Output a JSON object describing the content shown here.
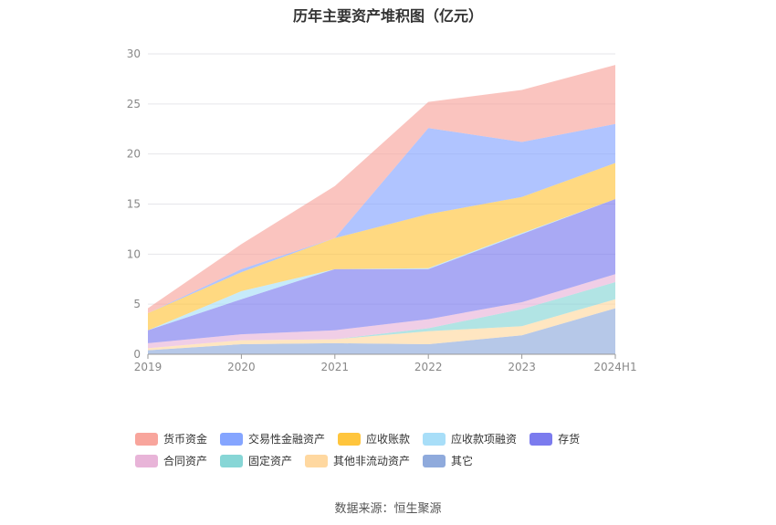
{
  "chart_data": {
    "type": "area",
    "title": "历年主要资产堆积图（亿元）",
    "categories": [
      "2019",
      "2020",
      "2021",
      "2022",
      "2023",
      "2024H1"
    ],
    "ylim": [
      0,
      30
    ],
    "yticks": [
      "0",
      "5",
      "10",
      "15",
      "20",
      "25",
      "30"
    ],
    "stacked": true,
    "grid": true,
    "legend_position": "bottom",
    "series": [
      {
        "name": "其它",
        "color": "#8FAADC",
        "values": [
          0.4,
          1.0,
          1.1,
          1.0,
          1.9,
          4.6
        ]
      },
      {
        "name": "其他非流动资产",
        "color": "#FFD8A0",
        "values": [
          0.2,
          0.4,
          0.4,
          1.3,
          0.9,
          0.9
        ]
      },
      {
        "name": "固定资产",
        "color": "#87D6D6",
        "values": [
          0.0,
          0.0,
          0.0,
          0.3,
          1.7,
          1.7
        ]
      },
      {
        "name": "合同资产",
        "color": "#E8B4D8",
        "values": [
          0.5,
          0.6,
          0.9,
          0.9,
          0.7,
          0.8
        ]
      },
      {
        "name": "存货",
        "color": "#7B7BEE",
        "values": [
          1.3,
          3.5,
          6.1,
          5.0,
          6.8,
          7.5
        ]
      },
      {
        "name": "应收款项融资",
        "color": "#A8DEF8",
        "values": [
          0.0,
          0.8,
          0.0,
          0.1,
          0.1,
          0.0
        ]
      },
      {
        "name": "应收账款",
        "color": "#FFC53D",
        "values": [
          1.7,
          1.9,
          3.1,
          5.4,
          3.6,
          3.6
        ]
      },
      {
        "name": "交易性金融资产",
        "color": "#85A5FF",
        "values": [
          0.0,
          0.3,
          0.0,
          8.6,
          5.5,
          3.9
        ]
      },
      {
        "name": "货币资金",
        "color": "#F8A59C",
        "values": [
          0.5,
          2.5,
          5.2,
          2.6,
          5.2,
          5.9
        ]
      }
    ],
    "legend_order": [
      "货币资金",
      "交易性金融资产",
      "应收账款",
      "应收款项融资",
      "存货",
      "合同资产",
      "固定资产",
      "其他非流动资产",
      "其它"
    ]
  },
  "footer": {
    "source": "数据来源：恒生聚源"
  }
}
